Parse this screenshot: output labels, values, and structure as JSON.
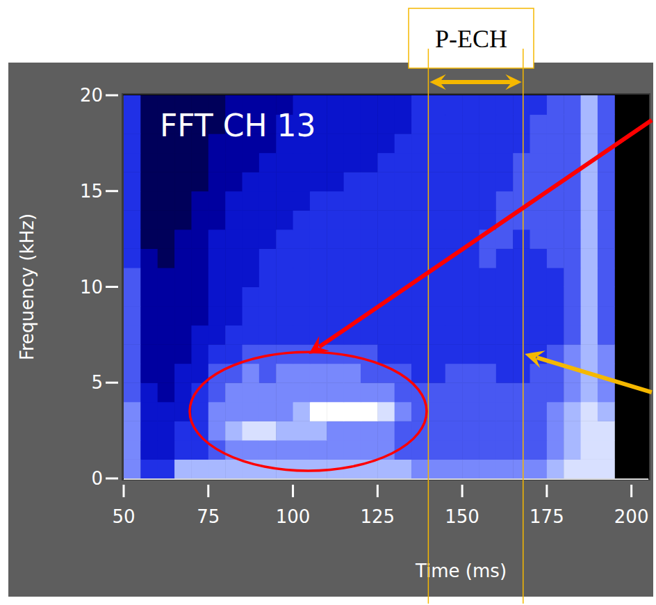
{
  "chart_data": {
    "type": "heatmap",
    "title": "FFT CH 13",
    "x_label": "Time (ms)",
    "y_label": "Frequency (kHz)",
    "xlim": [
      50,
      205
    ],
    "ylim": [
      0,
      20
    ],
    "xticks": [
      50,
      75,
      100,
      125,
      150,
      175,
      200
    ],
    "yticks": [
      0,
      5,
      10,
      15,
      20
    ],
    "x_bins": [
      50,
      55,
      60,
      65,
      70,
      75,
      80,
      85,
      90,
      95,
      100,
      105,
      110,
      115,
      120,
      125,
      130,
      135,
      140,
      145,
      150,
      155,
      160,
      165,
      170,
      175,
      180,
      185,
      190,
      195
    ],
    "y_bins": [
      0,
      1,
      2,
      3,
      4,
      5,
      6,
      7,
      8,
      9,
      10,
      11,
      12,
      13,
      14,
      15,
      16,
      17,
      18,
      19,
      20
    ],
    "zlim": [
      0,
      9
    ],
    "cells": [
      [
        6,
        4,
        4,
        7,
        7,
        7,
        7,
        7,
        7,
        7,
        7,
        7,
        7,
        7,
        7,
        7,
        7,
        6,
        6,
        6,
        6,
        6,
        6,
        6,
        6,
        7,
        8,
        8,
        8
      ],
      [
        6,
        3,
        3,
        4,
        4,
        5,
        6,
        6,
        6,
        6,
        6,
        6,
        6,
        6,
        6,
        6,
        5,
        5,
        5,
        5,
        5,
        5,
        5,
        5,
        5,
        6,
        7,
        8,
        8
      ],
      [
        6,
        3,
        3,
        4,
        4,
        6,
        7,
        8,
        8,
        7,
        7,
        7,
        6,
        6,
        6,
        6,
        5,
        5,
        5,
        5,
        5,
        5,
        5,
        5,
        5,
        6,
        7,
        8,
        8
      ],
      [
        6,
        3,
        3,
        3,
        4,
        6,
        6,
        6,
        6,
        6,
        7,
        9,
        9,
        9,
        9,
        8,
        6,
        5,
        5,
        5,
        5,
        5,
        5,
        5,
        5,
        6,
        7,
        8,
        7
      ],
      [
        5,
        3,
        2,
        3,
        4,
        5,
        6,
        6,
        6,
        6,
        6,
        6,
        6,
        6,
        6,
        6,
        5,
        5,
        5,
        5,
        5,
        5,
        5,
        5,
        5,
        5,
        6,
        7,
        6
      ],
      [
        5,
        2,
        2,
        3,
        3,
        5,
        5,
        6,
        5,
        6,
        6,
        6,
        6,
        6,
        5,
        5,
        5,
        4,
        4,
        5,
        5,
        5,
        4,
        4,
        5,
        5,
        6,
        7,
        6
      ],
      [
        5,
        2,
        2,
        2,
        3,
        4,
        4,
        5,
        5,
        5,
        5,
        5,
        5,
        5,
        5,
        4,
        4,
        4,
        4,
        4,
        4,
        4,
        4,
        4,
        4,
        5,
        6,
        7,
        6
      ],
      [
        5,
        2,
        2,
        2,
        3,
        3,
        4,
        4,
        4,
        4,
        4,
        4,
        4,
        4,
        4,
        4,
        4,
        4,
        4,
        4,
        4,
        4,
        4,
        4,
        4,
        4,
        5,
        7,
        5
      ],
      [
        5,
        2,
        2,
        2,
        2,
        3,
        3,
        4,
        4,
        4,
        4,
        4,
        4,
        4,
        4,
        4,
        4,
        4,
        4,
        4,
        4,
        4,
        4,
        4,
        4,
        4,
        5,
        7,
        5
      ],
      [
        5,
        2,
        2,
        2,
        2,
        3,
        3,
        4,
        4,
        4,
        4,
        4,
        4,
        4,
        4,
        4,
        4,
        4,
        4,
        4,
        4,
        4,
        4,
        4,
        4,
        4,
        5,
        7,
        5
      ],
      [
        5,
        2,
        2,
        2,
        2,
        3,
        3,
        3,
        4,
        4,
        4,
        4,
        4,
        4,
        4,
        4,
        4,
        4,
        4,
        4,
        4,
        4,
        4,
        4,
        4,
        4,
        5,
        7,
        5
      ],
      [
        4,
        2,
        1,
        2,
        2,
        3,
        3,
        3,
        4,
        4,
        4,
        4,
        4,
        4,
        4,
        4,
        4,
        4,
        4,
        4,
        4,
        5,
        4,
        4,
        4,
        5,
        5,
        7,
        5
      ],
      [
        4,
        1,
        1,
        2,
        2,
        3,
        3,
        3,
        3,
        4,
        4,
        4,
        4,
        4,
        4,
        4,
        4,
        4,
        4,
        4,
        4,
        5,
        5,
        4,
        5,
        5,
        5,
        7,
        5
      ],
      [
        4,
        1,
        1,
        1,
        2,
        2,
        3,
        3,
        3,
        3,
        4,
        4,
        4,
        4,
        4,
        4,
        4,
        4,
        4,
        4,
        4,
        4,
        5,
        5,
        5,
        5,
        5,
        7,
        5
      ],
      [
        4,
        1,
        1,
        1,
        2,
        2,
        3,
        3,
        3,
        3,
        3,
        4,
        4,
        4,
        4,
        4,
        4,
        4,
        4,
        4,
        4,
        4,
        5,
        5,
        5,
        5,
        5,
        7,
        5
      ],
      [
        4,
        1,
        1,
        1,
        1,
        2,
        2,
        3,
        3,
        3,
        3,
        3,
        3,
        4,
        4,
        4,
        4,
        4,
        4,
        4,
        4,
        4,
        4,
        5,
        5,
        5,
        5,
        7,
        5
      ],
      [
        4,
        1,
        1,
        1,
        1,
        2,
        2,
        2,
        3,
        3,
        3,
        3,
        3,
        3,
        3,
        4,
        4,
        4,
        4,
        4,
        4,
        4,
        4,
        5,
        5,
        5,
        5,
        7,
        5
      ],
      [
        4,
        1,
        1,
        1,
        1,
        2,
        2,
        2,
        2,
        3,
        3,
        3,
        3,
        3,
        3,
        3,
        4,
        4,
        4,
        4,
        4,
        4,
        4,
        4,
        5,
        5,
        5,
        7,
        5
      ],
      [
        4,
        1,
        1,
        1,
        1,
        1,
        2,
        2,
        2,
        3,
        3,
        3,
        3,
        3,
        3,
        3,
        3,
        4,
        4,
        4,
        4,
        4,
        4,
        4,
        5,
        5,
        5,
        7,
        5
      ],
      [
        4,
        1,
        1,
        1,
        1,
        1,
        2,
        2,
        2,
        2,
        3,
        3,
        3,
        3,
        3,
        3,
        3,
        4,
        4,
        4,
        4,
        4,
        4,
        4,
        4,
        5,
        5,
        7,
        5
      ]
    ],
    "annotations": [
      {
        "type": "span",
        "label": "P-ECH",
        "x": [
          140,
          168
        ],
        "color": "#f5b800"
      },
      {
        "type": "ellipse",
        "x": 104.5,
        "y": 3.5,
        "rx": 35,
        "ry": 3.1,
        "color": "#ff0000"
      },
      {
        "type": "arrow",
        "x": 104.7,
        "y": 6.5,
        "from": [
          206,
          18.7
        ],
        "color": "#ff0000"
      },
      {
        "type": "arrow",
        "x": 168.5,
        "y": 6.5,
        "from": [
          206,
          4.5
        ],
        "color": "#f5b800"
      }
    ]
  }
}
